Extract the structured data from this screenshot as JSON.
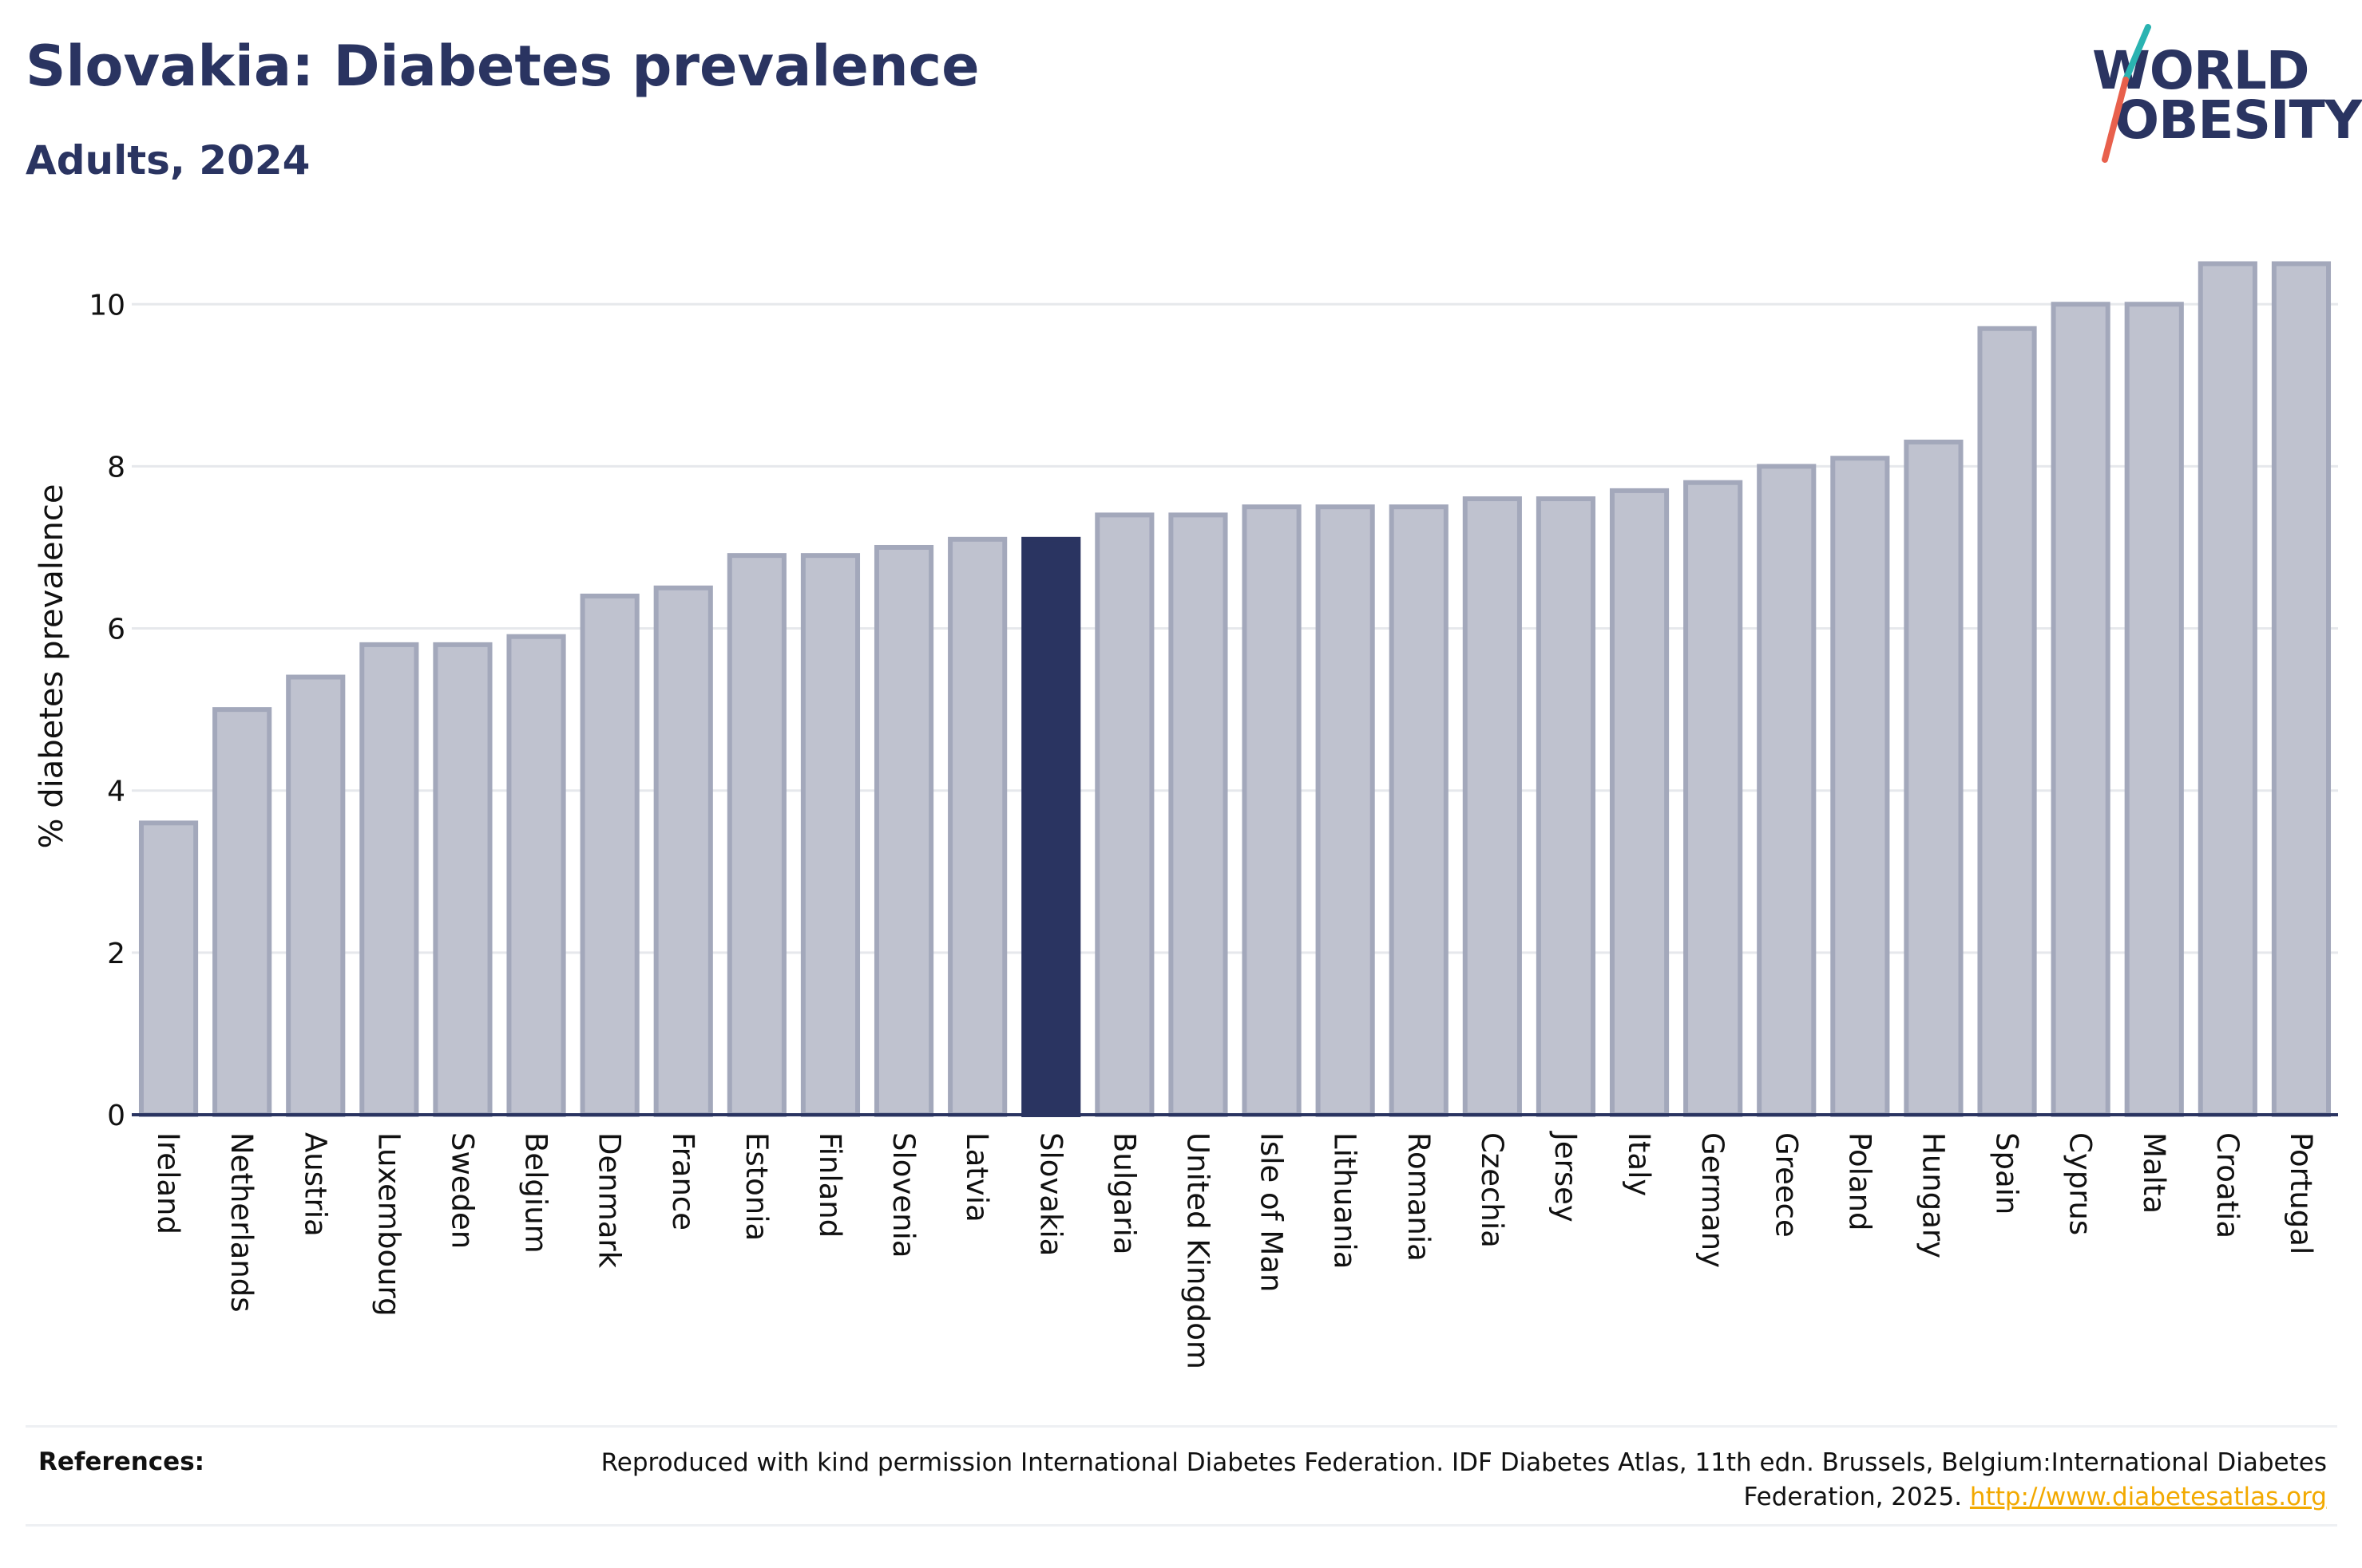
{
  "header": {
    "title": "Slovakia: Diabetes prevalence",
    "subtitle": "Adults, 2024"
  },
  "logo": {
    "line1": "WORLD",
    "line2": "OBESITY",
    "colors": {
      "text": "#2a3461",
      "slash_top": "#2ab3b1",
      "slash_bottom": "#e8604c"
    }
  },
  "chart_data": {
    "type": "bar",
    "ylabel": "% diabetes prevalence",
    "xlabel": "",
    "ylim": [
      0,
      10.8
    ],
    "yticks": [
      0,
      2,
      4,
      6,
      8,
      10
    ],
    "grid": true,
    "highlight": "Slovakia",
    "colors": {
      "bar": "#bfc2cf",
      "bar_outline": "#a3a8bb",
      "highlight": "#2a3461",
      "grid": "#e6e8ec",
      "axis": "#2a3461"
    },
    "categories": [
      "Ireland",
      "Netherlands",
      "Austria",
      "Luxembourg",
      "Sweden",
      "Belgium",
      "Denmark",
      "France",
      "Estonia",
      "Finland",
      "Slovenia",
      "Latvia",
      "Slovakia",
      "Bulgaria",
      "United Kingdom",
      "Isle of Man",
      "Lithuania",
      "Romania",
      "Czechia",
      "Jersey",
      "Italy",
      "Germany",
      "Greece",
      "Poland",
      "Hungary",
      "Spain",
      "Cyprus",
      "Malta",
      "Croatia",
      "Portugal"
    ],
    "values": [
      3.6,
      5.0,
      5.4,
      5.8,
      5.8,
      5.9,
      6.4,
      6.5,
      6.9,
      6.9,
      7.0,
      7.1,
      7.1,
      7.4,
      7.4,
      7.5,
      7.5,
      7.5,
      7.6,
      7.6,
      7.7,
      7.8,
      8.0,
      8.1,
      8.3,
      9.7,
      10.0,
      10.0,
      10.5,
      10.5
    ]
  },
  "references": {
    "label": "References:",
    "text": "Reproduced with kind permission International Diabetes Federation. IDF Diabetes Atlas, 11th edn. Brussels, Belgium:International Diabetes Federation, 2025.",
    "link": "http://www.diabetesatlas.org"
  }
}
